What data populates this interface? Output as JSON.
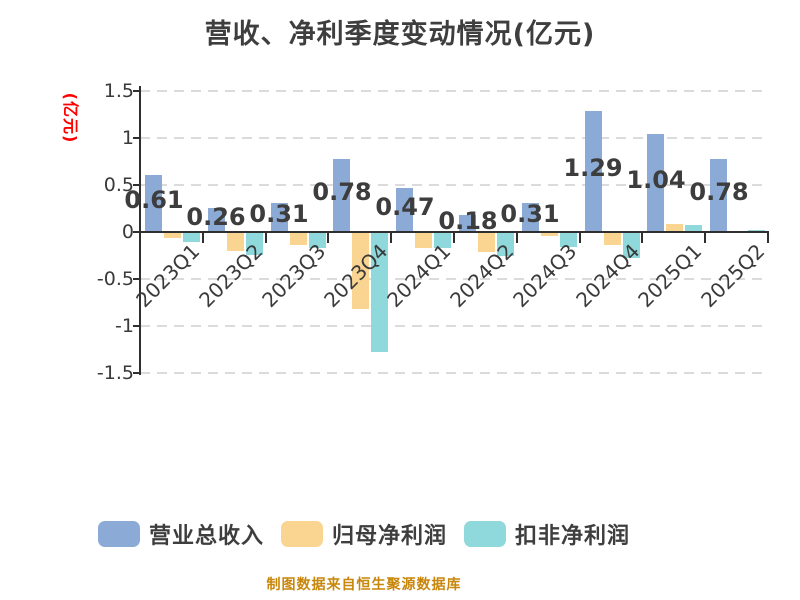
{
  "title": "营收、净利季度变动情况(亿元)",
  "y_axis_label": "(亿元)",
  "footer": "制图数据来自恒生聚源数据库",
  "colors": {
    "background": "#FFFFFF",
    "title_text": "#3E3E3E",
    "axis": "#2F2F2F",
    "tick_text": "#3A3A3A",
    "gridline": "#DBDBDB",
    "y_axis_label_red": "#FF0000",
    "value_label": "#3D3D3D",
    "footer_text": "#C8860B",
    "series_blue": "#8BABD6",
    "series_orange": "#FAD591",
    "series_cyan": "#8FD8DB"
  },
  "chart_data": {
    "type": "bar",
    "title": "营收、净利季度变动情况(亿元)",
    "ylabel": "(亿元)",
    "xlabel": "",
    "categories": [
      "2023Q1",
      "2023Q2",
      "2023Q3",
      "2023Q4",
      "2024Q1",
      "2024Q2",
      "2024Q3",
      "2024Q4",
      "2025Q1",
      "2025Q2"
    ],
    "series": [
      {
        "name": "营业总收入",
        "color": "#8BABD6",
        "values": [
          0.61,
          0.26,
          0.31,
          0.78,
          0.47,
          0.18,
          0.31,
          1.29,
          1.04,
          0.78
        ],
        "value_labels": [
          "0.61",
          "0.26",
          "0.31",
          "0.78",
          "0.47",
          "0.18",
          "0.31",
          "1.29",
          "1.04",
          "0.78"
        ]
      },
      {
        "name": "归母净利润",
        "color": "#FAD591",
        "values": [
          -0.05,
          -0.19,
          -0.13,
          -0.81,
          -0.16,
          -0.2,
          -0.03,
          -0.13,
          0.08,
          0.0
        ]
      },
      {
        "name": "扣非净利润",
        "color": "#8FD8DB",
        "values": [
          -0.1,
          -0.23,
          -0.16,
          -1.27,
          -0.16,
          -0.24,
          -0.15,
          -0.27,
          0.07,
          0.02
        ]
      }
    ],
    "ylim": [
      -1.5,
      1.5
    ],
    "yticks": [
      1.5,
      1,
      0.5,
      0,
      -0.5,
      -1,
      -1.5
    ],
    "ytick_labels": [
      "1.5",
      "1",
      "0.5",
      "0",
      "-0.5",
      "-1",
      "-1.5"
    ],
    "grid": "horizontal-dashed",
    "legend_position": "bottom"
  }
}
